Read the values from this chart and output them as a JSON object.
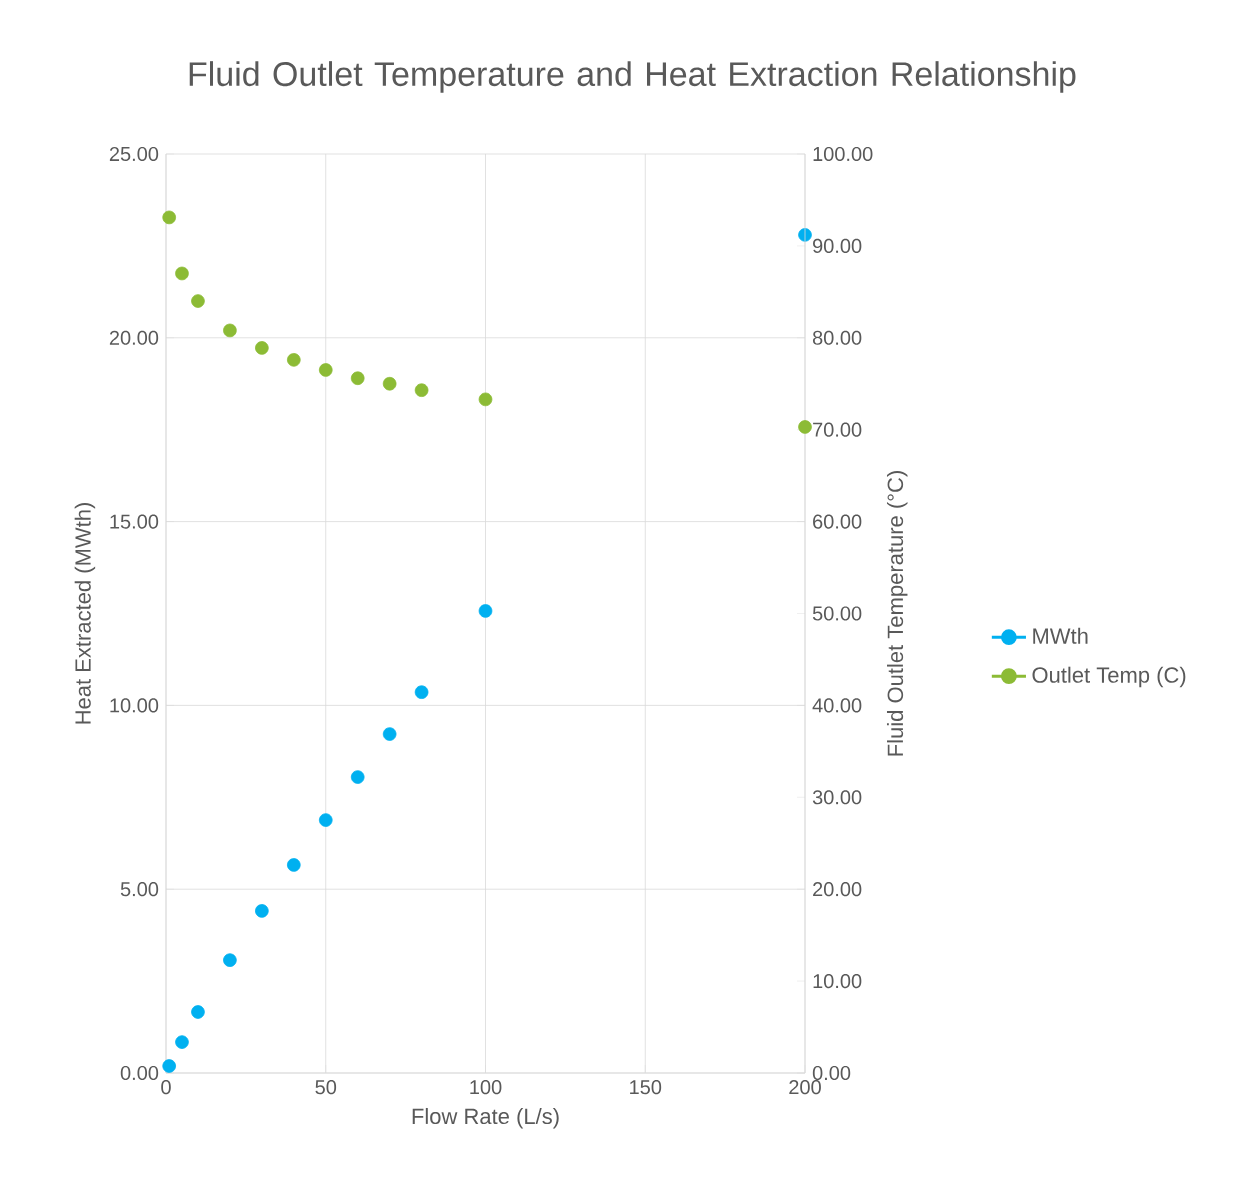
{
  "chart_data": {
    "type": "scatter",
    "title": "Fluid Outlet Temperature and Heat Extraction Relationship",
    "xlabel": "Flow Rate (L/s)",
    "ylabel": "Heat Extracted (MWth)",
    "y2label": "Fluid Outlet Temperature (°C)",
    "x": [
      1,
      5,
      10,
      20,
      30,
      40,
      50,
      60,
      70,
      80,
      100,
      200
    ],
    "series": [
      {
        "name": "MWth",
        "color": "#00b0f0",
        "values": [
          0.19,
          0.84,
          1.66,
          3.07,
          4.41,
          5.66,
          6.88,
          8.05,
          9.22,
          10.36,
          12.57,
          22.8
        ]
      },
      {
        "name": "Outlet Temp (C)",
        "color": "#8cbb35",
        "axis": "y2",
        "values": [
          93.1,
          87.0,
          84.0,
          80.8,
          78.9,
          77.6,
          76.5,
          75.6,
          75.0,
          74.3,
          73.3,
          70.3
        ]
      }
    ],
    "xlim": [
      0,
      200
    ],
    "xticks": [
      0,
      50,
      100,
      150,
      200
    ],
    "ylim": [
      0,
      25
    ],
    "yticks": [
      {
        "value": 0,
        "label": "0.00"
      },
      {
        "value": 5,
        "label": "5.00"
      },
      {
        "value": 10,
        "label": "10.00"
      },
      {
        "value": 15,
        "label": "15.00"
      },
      {
        "value": 20,
        "label": "20.00"
      },
      {
        "value": 25,
        "label": "25.00"
      }
    ],
    "y2lim": [
      0,
      100
    ],
    "y2ticks": [
      {
        "value": 0,
        "label": "0.00"
      },
      {
        "value": 10,
        "label": "10.00"
      },
      {
        "value": 20,
        "label": "20.00"
      },
      {
        "value": 30,
        "label": "30.00"
      },
      {
        "value": 40,
        "label": "40.00"
      },
      {
        "value": 50,
        "label": "50.00"
      },
      {
        "value": 60,
        "label": "60.00"
      },
      {
        "value": 70,
        "label": "70.00"
      },
      {
        "value": 80,
        "label": "80.00"
      },
      {
        "value": 90,
        "label": "90.00"
      },
      {
        "value": 100,
        "label": "100.00"
      }
    ],
    "grid": true,
    "legend": "right",
    "marker": "circle"
  }
}
